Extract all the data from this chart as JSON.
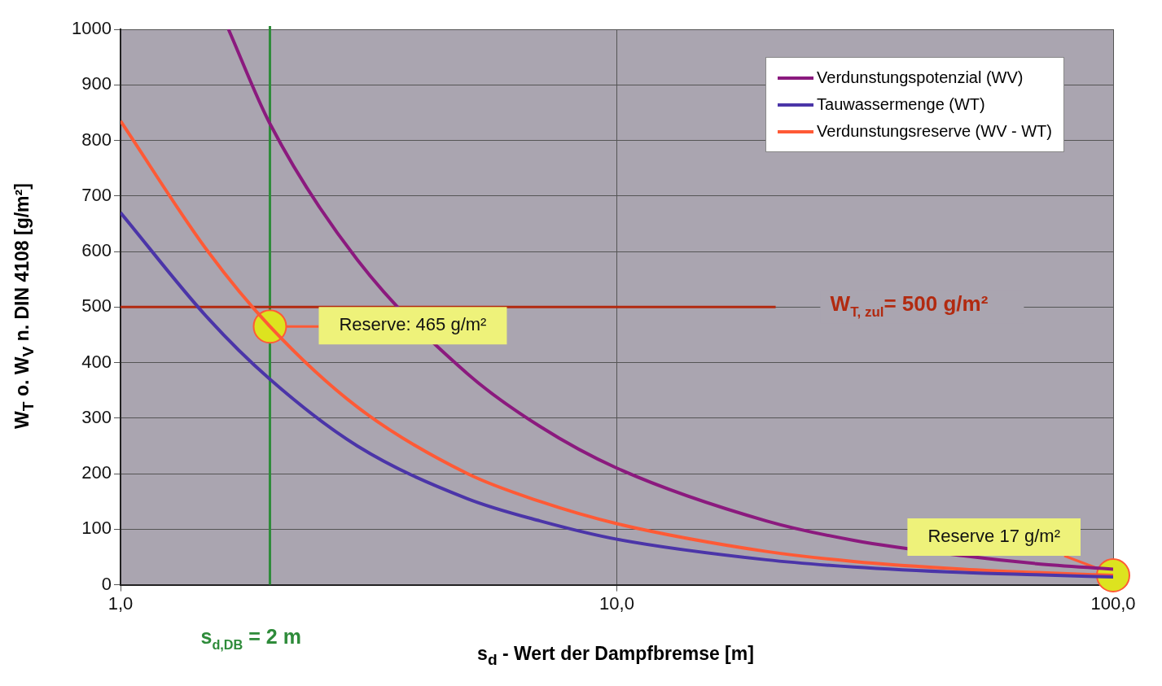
{
  "chart_data": {
    "type": "line",
    "xlabel": "s$_{d}$ - Wert der Dampfbremse [m]",
    "ylabel": "W$_{T}$ o. W$_{V}$ n. DIN 4108 [g/m²]",
    "log": "x",
    "xlim": [
      1,
      100
    ],
    "xticks": [
      {
        "value": 1,
        "label": "1,0"
      },
      {
        "value": 10,
        "label": "10,0"
      },
      {
        "value": 100,
        "label": "100,0"
      }
    ],
    "ylim": [
      0,
      1000
    ],
    "yticks": [
      0,
      100,
      200,
      300,
      400,
      500,
      600,
      700,
      800,
      900,
      1000
    ],
    "grid": true,
    "legend": "top right",
    "marker": "none",
    "line_style": "solid",
    "series": [
      {
        "name": "Verdunstungspotenzial (WV)",
        "color": "#8b1a7e",
        "x": [
          1.65,
          2,
          3,
          5,
          7,
          10,
          20,
          30,
          50,
          70,
          100
        ],
        "values": [
          1000,
          830,
          585,
          380,
          285,
          210,
          115,
          80,
          52,
          38,
          28
        ]
      },
      {
        "name": "Tauwassermenge (WT)",
        "color": "#4b35a8",
        "x": [
          1,
          1.5,
          2,
          3,
          5,
          7,
          10,
          20,
          30,
          50,
          70,
          100
        ],
        "values": [
          670,
          480,
          370,
          250,
          155,
          115,
          82,
          45,
          32,
          22,
          18,
          14
        ]
      },
      {
        "name": "Verdunstungsreserve (WV - WT)",
        "color": "#ff5a36",
        "x": [
          1,
          1.5,
          2,
          3,
          5,
          7,
          10,
          20,
          30,
          50,
          70,
          100
        ],
        "values": [
          835,
          600,
          465,
          320,
          200,
          150,
          110,
          60,
          42,
          28,
          22,
          17
        ]
      },
      {
        "type": "scatter",
        "marker": "circle",
        "color": "#dde31f",
        "x": [
          2,
          100
        ],
        "values": [
          465,
          17
        ]
      }
    ],
    "ref_lines": [
      {
        "axis": "x",
        "value": 2,
        "label": "s$_{d,DB}$ = 2 m",
        "color": "#2e8b3a"
      },
      {
        "axis": "y",
        "value": 500,
        "label": "W$_{T, zul}$= 500 g/m²",
        "color": "#b22a10"
      }
    ],
    "annotations": [
      "Reserve: 465 g/m²",
      {
        "text": "Reserve 17 g/m²",
        "x": 100,
        "y": 17
      }
    ]
  }
}
